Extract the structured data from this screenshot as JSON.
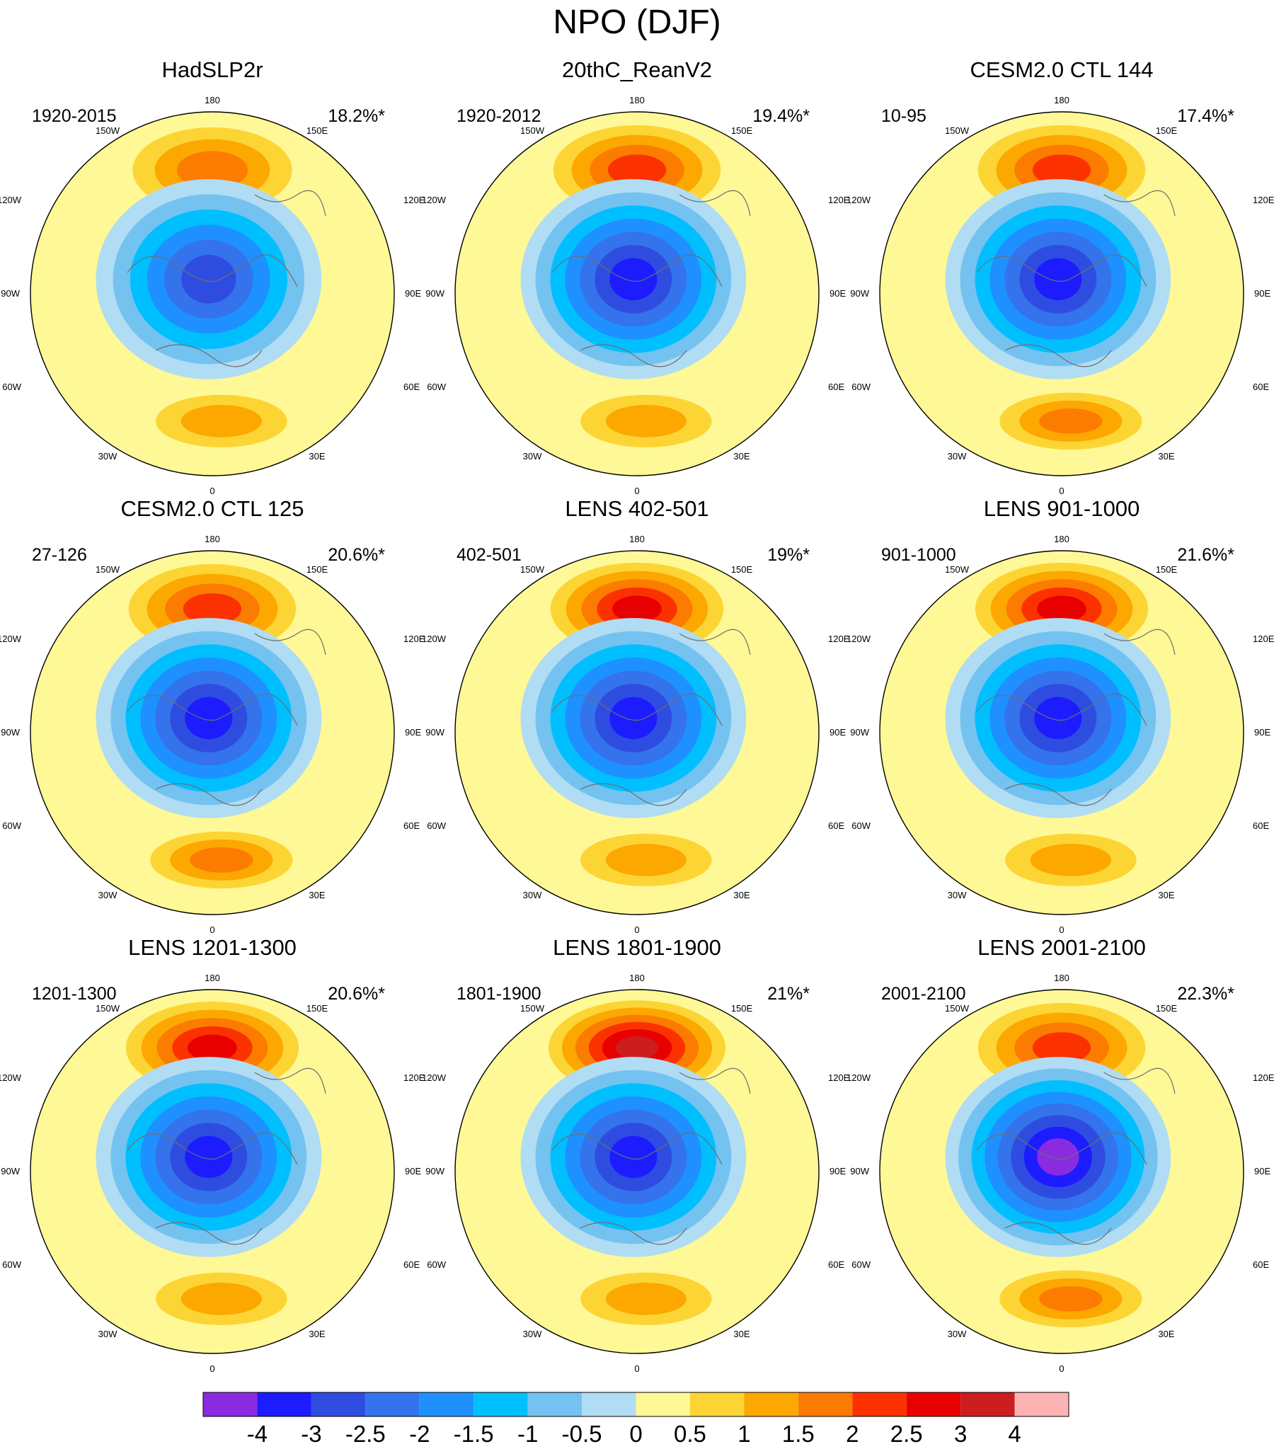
{
  "figure": {
    "title": "NPO (DJF)"
  },
  "chart_data": {
    "type": "contourf-polar-stereographic",
    "projection": "north polar stereographic, 0 at bottom, 180 at top",
    "variable": "NPO (North Pacific Oscillation) sea level pressure pattern, DJF",
    "longitude_labels": [
      "180",
      "150W",
      "150E",
      "120W",
      "120E",
      "90W",
      "90E",
      "60W",
      "60E",
      "30W",
      "30E",
      "0"
    ],
    "colorbar": {
      "levels": [
        -4,
        -3,
        -2.5,
        -2,
        -1.5,
        -1,
        -0.5,
        0,
        0.5,
        1,
        1.5,
        2,
        2.5,
        3,
        4
      ],
      "tick_labels": [
        "-4",
        "-3",
        "-2.5",
        "-2",
        "-1.5",
        "-1",
        "-0.5",
        "0",
        "0.5",
        "1",
        "1.5",
        "2",
        "2.5",
        "3",
        "4"
      ],
      "colors": [
        "#8a2be2",
        "#1c1cff",
        "#2e4de0",
        "#3473eb",
        "#1e90ff",
        "#00bfff",
        "#74c2f0",
        "#b0dcf4",
        "#fff896",
        "#fcd535",
        "#fca800",
        "#fb7c00",
        "#fb3200",
        "#e80000",
        "#cc1e1e",
        "#fdb3b3"
      ]
    },
    "panels": [
      {
        "title": "HadSLP2r",
        "period": "1920-2015",
        "variance": "18.2%*",
        "pos_max": 1.6,
        "neg_min": -2.6,
        "atl_max": 1.0
      },
      {
        "title": "20thC_ReanV2",
        "period": "1920-2012",
        "variance": "19.4%*",
        "pos_max": 2.1,
        "neg_min": -3.1,
        "atl_max": 1.1
      },
      {
        "title": "CESM2.0 CTL 144",
        "period": "10-95",
        "variance": "17.4%*",
        "pos_max": 2.1,
        "neg_min": -3.1,
        "atl_max": 1.6
      },
      {
        "title": "CESM2.0 CTL 125",
        "period": "27-126",
        "variance": "20.6%*",
        "pos_max": 2.3,
        "neg_min": -3.1,
        "atl_max": 1.8
      },
      {
        "title": "LENS 402-501",
        "period": "402-501",
        "variance": "19%*",
        "pos_max": 2.6,
        "neg_min": -3.1,
        "atl_max": 1.0
      },
      {
        "title": "LENS 901-1000",
        "period": "901-1000",
        "variance": "21.6%*",
        "pos_max": 2.6,
        "neg_min": -3.1,
        "atl_max": 1.1
      },
      {
        "title": "LENS 1201-1300",
        "period": "1201-1300",
        "variance": "20.6%*",
        "pos_max": 2.7,
        "neg_min": -3.1,
        "atl_max": 1.1
      },
      {
        "title": "LENS 1801-1900",
        "period": "1801-1900",
        "variance": "21%*",
        "pos_max": 3.1,
        "neg_min": -3.1,
        "atl_max": 1.1
      },
      {
        "title": "LENS 2001-2100",
        "period": "2001-2100",
        "variance": "22.3%*",
        "pos_max": 2.3,
        "neg_min": -4.1,
        "atl_max": 1.6
      }
    ]
  }
}
